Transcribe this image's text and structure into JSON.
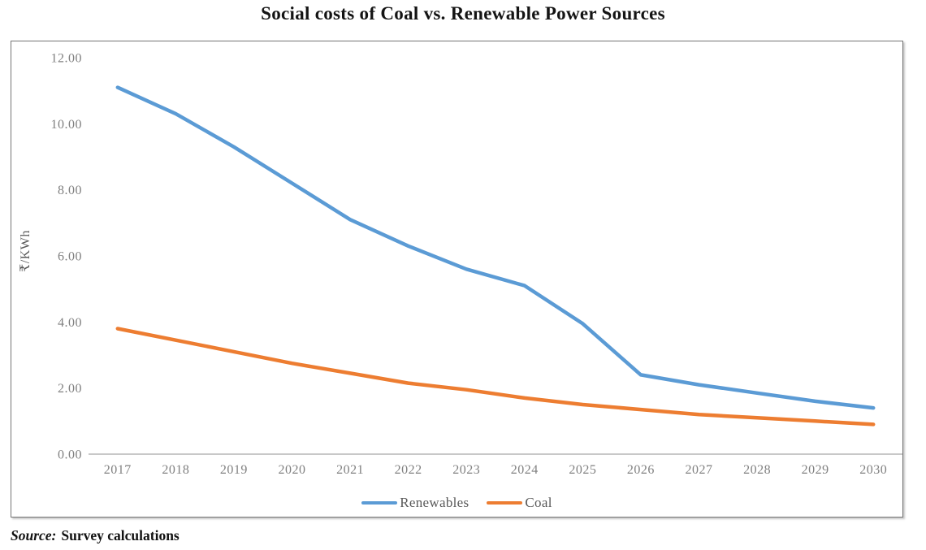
{
  "title": "Social costs of Coal vs. Renewable Power Sources",
  "source": {
    "label": "Source:",
    "text": "Survey calculations"
  },
  "chart_data": {
    "type": "line",
    "title": "Social costs of Coal vs. Renewable Power Sources",
    "categories": [
      "2017",
      "2018",
      "2019",
      "2020",
      "2021",
      "2022",
      "2023",
      "2024",
      "2025",
      "2026",
      "2027",
      "2028",
      "2029",
      "2030"
    ],
    "series": [
      {
        "name": "Renewables",
        "color": "#5B9BD5",
        "values": [
          11.1,
          10.3,
          9.3,
          8.2,
          7.1,
          6.3,
          5.6,
          5.1,
          3.95,
          2.4,
          2.1,
          1.85,
          1.6,
          1.4
        ]
      },
      {
        "name": "Coal",
        "color": "#ED7D31",
        "values": [
          3.8,
          3.45,
          3.1,
          2.75,
          2.45,
          2.15,
          1.95,
          1.7,
          1.5,
          1.35,
          1.2,
          1.1,
          1.0,
          0.9
        ]
      }
    ],
    "xlabel": "",
    "ylabel": "₹/KWh",
    "ylim": [
      0,
      12
    ],
    "ytick_labels": [
      "0.00",
      "2.00",
      "4.00",
      "6.00",
      "8.00",
      "10.00",
      "12.00"
    ],
    "grid": false,
    "legend_position": "bottom",
    "axis_color": "#A6A6A6",
    "tick_label_color": "#808080"
  }
}
